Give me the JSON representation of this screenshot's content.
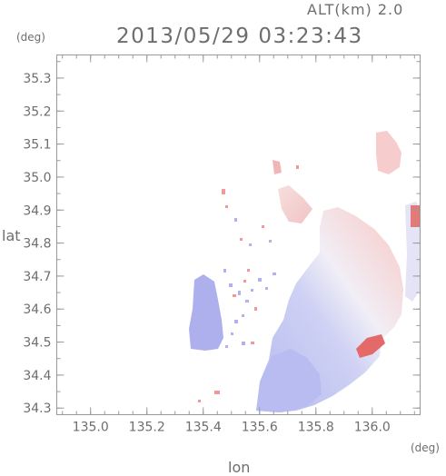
{
  "header": {
    "altitude": "ALT(km) 2.0",
    "timestamp": "2013/05/29 03:23:43"
  },
  "axes": {
    "y_unit": "(deg)",
    "x_unit": "(deg)",
    "y_label": "lat",
    "x_label": "lon",
    "x_ticks": [
      {
        "v": 135.0,
        "label": "135.0"
      },
      {
        "v": 135.2,
        "label": "135.2"
      },
      {
        "v": 135.4,
        "label": "135.4"
      },
      {
        "v": 135.6,
        "label": "135.6"
      },
      {
        "v": 135.8,
        "label": "135.8"
      },
      {
        "v": 136.0,
        "label": "136.0"
      }
    ],
    "y_ticks": [
      {
        "v": 35.3,
        "label": "35.3"
      },
      {
        "v": 35.2,
        "label": "35.2"
      },
      {
        "v": 35.1,
        "label": "35.1"
      },
      {
        "v": 35.0,
        "label": "35.0"
      },
      {
        "v": 34.9,
        "label": "34.9"
      },
      {
        "v": 34.8,
        "label": "34.8"
      },
      {
        "v": 34.7,
        "label": "34.7"
      },
      {
        "v": 34.6,
        "label": "34.6"
      },
      {
        "v": 34.5,
        "label": "34.5"
      },
      {
        "v": 34.4,
        "label": "34.4"
      },
      {
        "v": 34.3,
        "label": "34.3"
      }
    ]
  },
  "map": {
    "lon_range": [
      134.88,
      136.17
    ],
    "lat_range": [
      34.28,
      35.37
    ],
    "colors": {
      "approaching": "#a8aaf0",
      "receding": "#f0a2a2",
      "neutral": "#f2f0f8",
      "strong_receding": "#e05050"
    }
  }
}
